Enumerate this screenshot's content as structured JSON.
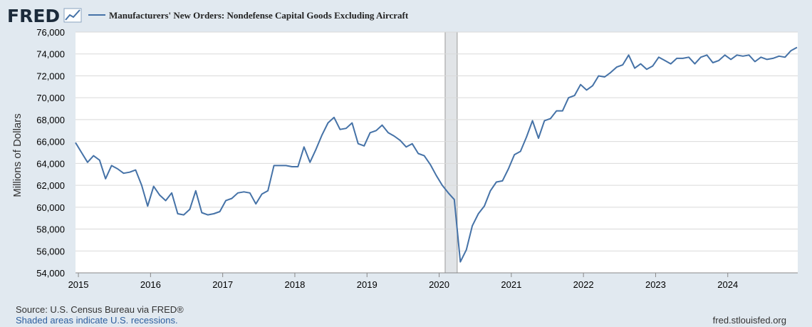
{
  "logo": {
    "text": "FRED"
  },
  "footer": {
    "source": "Source: U.S. Census Bureau via FRED®",
    "recession_note": "Shaded areas indicate U.S. recessions.",
    "site": "fred.stlouisfed.org"
  },
  "colors": {
    "background": "#e1e9f0",
    "plot_background": "#ffffff",
    "line": "#4572a7",
    "recession": "#e1e4e7",
    "grid": "#d9d9d9"
  },
  "chart_data": {
    "type": "line",
    "title": "Manufacturers' New Orders: Nondefense Capital Goods Excluding Aircraft",
    "ylabel": "Millions of Dollars",
    "xlabel": "",
    "grid": true,
    "legend": "top-left",
    "ylim": [
      54000,
      76000
    ],
    "xlim": [
      2014.96,
      2024.97
    ],
    "y_ticks": [
      54000,
      56000,
      58000,
      60000,
      62000,
      64000,
      66000,
      68000,
      70000,
      72000,
      74000,
      76000
    ],
    "y_tick_labels": [
      "54,000",
      "56,000",
      "58,000",
      "60,000",
      "62,000",
      "64,000",
      "66,000",
      "68,000",
      "70,000",
      "72,000",
      "74,000",
      "76,000"
    ],
    "x_ticks": [
      2015,
      2016,
      2017,
      2018,
      2019,
      2020,
      2021,
      2022,
      2023,
      2024
    ],
    "x_tick_labels": [
      "2015",
      "2016",
      "2017",
      "2018",
      "2019",
      "2020",
      "2021",
      "2022",
      "2023",
      "2024"
    ],
    "recessions": [
      [
        2020.083,
        2020.25
      ]
    ],
    "series": [
      {
        "name": "Manufacturers' New Orders: Nondefense Capital Goods Excluding Aircraft",
        "start": 2014.96,
        "step": 0.0833333,
        "values": [
          65900,
          65000,
          64100,
          64700,
          64300,
          62600,
          63800,
          63500,
          63100,
          63200,
          63400,
          62000,
          60100,
          61900,
          61100,
          60600,
          61300,
          59400,
          59300,
          59800,
          61500,
          59500,
          59300,
          59400,
          59600,
          60600,
          60800,
          61300,
          61400,
          61300,
          60300,
          61200,
          61500,
          63800,
          63800,
          63800,
          63700,
          63700,
          65500,
          64100,
          65300,
          66600,
          67700,
          68200,
          67100,
          67200,
          67700,
          65800,
          65600,
          66800,
          67000,
          67500,
          66800,
          66500,
          66100,
          65500,
          65800,
          64900,
          64700,
          63900,
          62900,
          62000,
          61300,
          60700,
          55000,
          56100,
          58300,
          59400,
          60100,
          61500,
          62300,
          62400,
          63500,
          64800,
          65100,
          66400,
          67900,
          66300,
          67900,
          68100,
          68800,
          68800,
          70000,
          70200,
          71200,
          70700,
          71100,
          72000,
          71900,
          72300,
          72800,
          73000,
          73900,
          72700,
          73100,
          72600,
          72900,
          73700,
          73400,
          73100,
          73600,
          73600,
          73700,
          73100,
          73700,
          73900,
          73200,
          73400,
          73900,
          73500,
          73900,
          73800,
          73900,
          73300,
          73700,
          73500,
          73600,
          73800,
          73700,
          74300,
          74600
        ]
      }
    ]
  }
}
